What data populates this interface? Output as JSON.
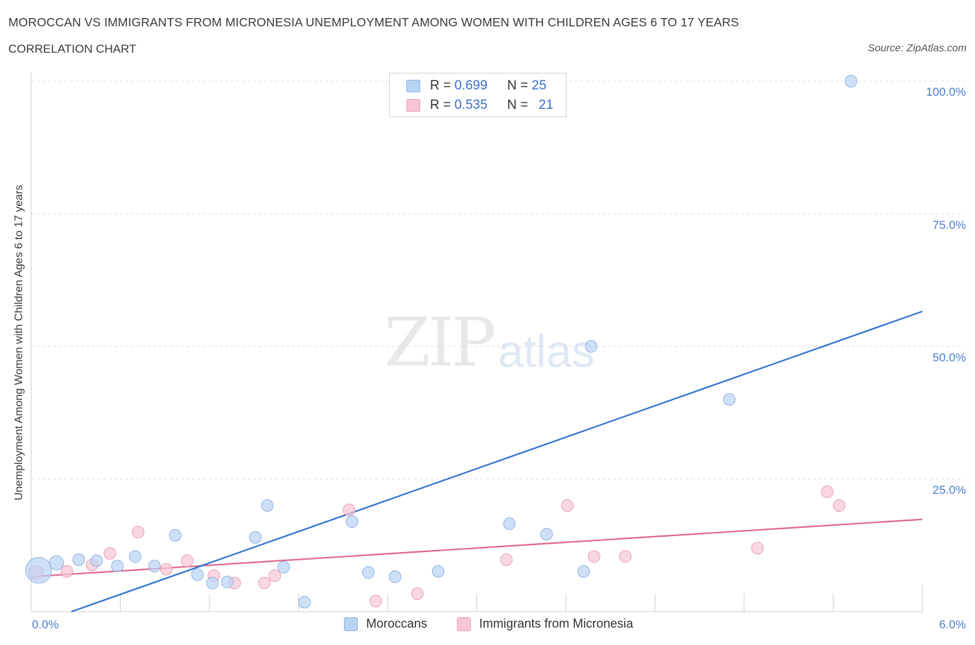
{
  "title": "MOROCCAN VS IMMIGRANTS FROM MICRONESIA UNEMPLOYMENT AMONG WOMEN WITH CHILDREN AGES 6 TO 17 YEARS",
  "subtitle": "CORRELATION CHART",
  "source": "Source: ZipAtlas.com",
  "watermark": {
    "zip": "ZIP",
    "atlas": "atlas"
  },
  "colors": {
    "blue_fill": "#b9d3f3",
    "blue_stroke": "#8fb3e6",
    "blue_line": "#2f74d0",
    "pink_fill": "#f7c6d4",
    "pink_stroke": "#ee9fb7",
    "pink_line": "#e0698f",
    "tick_text": "#4a7ed0",
    "grid": "#dcdcdc"
  },
  "legend": {
    "rows": [
      {
        "r_label": "R = ",
        "r_value": "0.699",
        "n_label": "N = ",
        "n_value": "25"
      },
      {
        "r_label": "R = ",
        "r_value": "0.535",
        "n_label": "N = ",
        "n_value": "21"
      }
    ]
  },
  "bottom_legend": {
    "series1": "Moroccans",
    "series2": "Immigrants from Micronesia"
  },
  "chart_data": {
    "type": "scatter",
    "title": "MOROCCAN VS IMMIGRANTS FROM MICRONESIA UNEMPLOYMENT AMONG WOMEN WITH CHILDREN AGES 6 TO 17 YEARS",
    "xlabel": "",
    "ylabel": "Unemployment Among Women with Children Ages 6 to 17 years",
    "xlim": [
      0,
      6
    ],
    "ylim": [
      0,
      100
    ],
    "x_tick_labels": [
      "0.0%",
      "6.0%"
    ],
    "y_ticks": [
      25,
      50,
      75,
      100
    ],
    "y_tick_labels": [
      "25.0%",
      "50.0%",
      "75.0%",
      "100.0%"
    ],
    "grid": true,
    "series": [
      {
        "name": "Moroccans",
        "R": 0.699,
        "N": 25,
        "trend": [
          [
            0.27,
            0
          ],
          [
            6.0,
            56.6
          ]
        ],
        "points": [
          [
            0.05,
            7.8,
            2.2
          ],
          [
            0.17,
            9.2,
            1.2
          ],
          [
            0.32,
            9.8,
            1
          ],
          [
            0.44,
            9.6,
            1
          ],
          [
            0.58,
            8.6,
            1
          ],
          [
            0.7,
            10.4,
            1
          ],
          [
            0.83,
            8.6,
            1
          ],
          [
            0.97,
            14.4,
            1
          ],
          [
            1.12,
            7.0,
            1
          ],
          [
            1.22,
            5.4,
            1
          ],
          [
            1.32,
            5.6,
            1
          ],
          [
            1.51,
            14.0,
            1
          ],
          [
            1.59,
            20.0,
            1
          ],
          [
            1.7,
            8.4,
            1
          ],
          [
            1.84,
            1.8,
            1
          ],
          [
            2.16,
            17.0,
            1
          ],
          [
            2.27,
            7.4,
            1
          ],
          [
            2.45,
            6.6,
            1
          ],
          [
            2.74,
            7.6,
            1
          ],
          [
            3.22,
            16.6,
            1
          ],
          [
            3.47,
            14.6,
            1
          ],
          [
            3.72,
            7.6,
            1
          ],
          [
            3.77,
            50.0,
            1
          ],
          [
            4.7,
            40.0,
            1
          ],
          [
            5.52,
            100.0,
            1
          ]
        ]
      },
      {
        "name": "Immigrants from Micronesia",
        "R": 0.535,
        "N": 21,
        "trend": [
          [
            0.0,
            6.6
          ],
          [
            6.0,
            17.4
          ]
        ],
        "points": [
          [
            0.03,
            7.4,
            1.2
          ],
          [
            0.24,
            7.6,
            1
          ],
          [
            0.41,
            8.8,
            1
          ],
          [
            0.53,
            11.0,
            1
          ],
          [
            0.72,
            15.0,
            1
          ],
          [
            0.91,
            8.0,
            1
          ],
          [
            1.05,
            9.6,
            1
          ],
          [
            1.23,
            6.8,
            1
          ],
          [
            1.37,
            5.4,
            1
          ],
          [
            1.57,
            5.4,
            1
          ],
          [
            1.64,
            6.8,
            1
          ],
          [
            2.14,
            19.2,
            1
          ],
          [
            2.32,
            2.0,
            1
          ],
          [
            2.6,
            3.4,
            1
          ],
          [
            3.2,
            9.8,
            1
          ],
          [
            3.61,
            20.0,
            1
          ],
          [
            3.79,
            10.4,
            1
          ],
          [
            4.0,
            10.4,
            1
          ],
          [
            4.89,
            12.0,
            1
          ],
          [
            5.36,
            22.6,
            1
          ],
          [
            5.44,
            20.0,
            1
          ]
        ]
      }
    ]
  }
}
